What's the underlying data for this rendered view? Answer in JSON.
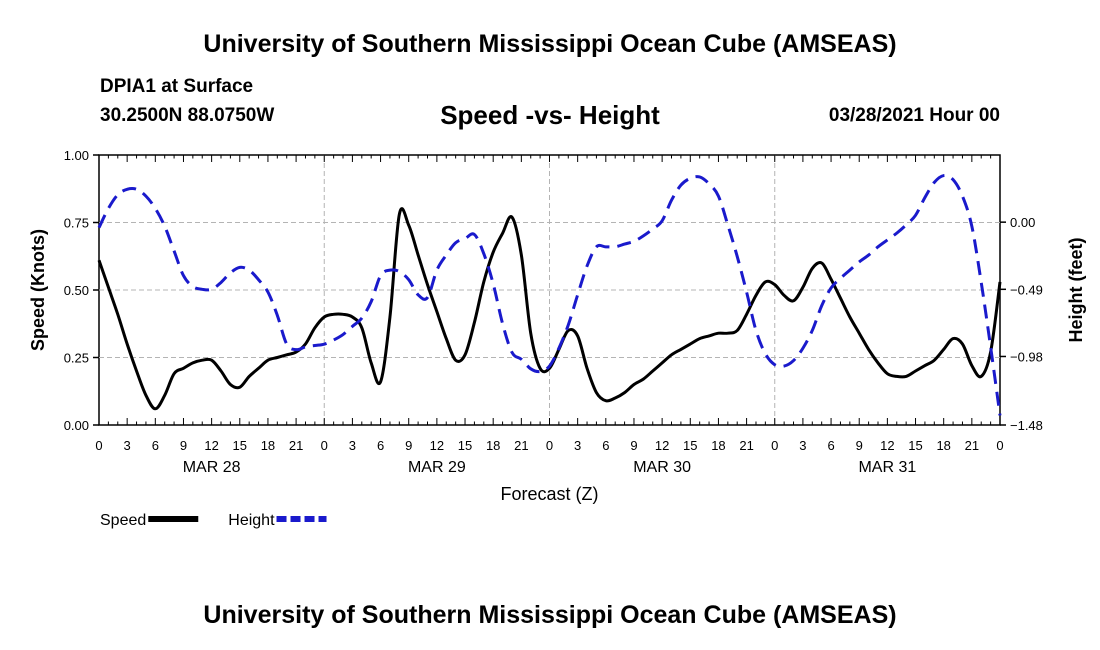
{
  "header": {
    "title_top": "University of Southern Mississippi Ocean Cube (AMSEAS)",
    "title_bottom": "University of Southern Mississippi Ocean Cube (AMSEAS)",
    "station": "DPIA1 at Surface",
    "coords": "30.2500N  88.0750W",
    "datetime": "03/28/2021 Hour 00"
  },
  "chart_data": {
    "type": "line",
    "title": "Speed -vs- Height",
    "xlabel": "Forecast (Z)",
    "ylabel_left": "Speed (Knots)",
    "ylabel_right": "Height (feet)",
    "x_range_hours": [
      0,
      96
    ],
    "ylim_left": [
      0,
      1
    ],
    "ylim_right": [
      -1.48,
      0.49
    ],
    "y_ticks_left": [
      "0.00",
      "0.25",
      "0.50",
      "0.75",
      "1.00"
    ],
    "y_ticks_right": [
      "−1.48",
      "−0.98",
      "−0.49",
      "0.00"
    ],
    "y_ticks_right_values": [
      -1.48,
      -0.98,
      -0.49,
      0.0
    ],
    "x_tick_labels": [
      "0",
      "3",
      "6",
      "9",
      "12",
      "15",
      "18",
      "21",
      "0",
      "3",
      "6",
      "9",
      "12",
      "15",
      "18",
      "21",
      "0",
      "3",
      "6",
      "9",
      "12",
      "15",
      "18",
      "21",
      "0",
      "3",
      "6",
      "9",
      "12",
      "15",
      "18",
      "21",
      "0"
    ],
    "day_labels": [
      {
        "label": "MAR 28",
        "hour": 12
      },
      {
        "label": "MAR 29",
        "hour": 36
      },
      {
        "label": "MAR 30",
        "hour": 60
      },
      {
        "label": "MAR 31",
        "hour": 84
      }
    ],
    "grid": true,
    "legend": [
      {
        "name": "Speed",
        "color": "#000000",
        "style": "solid"
      },
      {
        "name": "Height",
        "color": "#1a1acc",
        "style": "dashed"
      }
    ],
    "series": [
      {
        "name": "Speed",
        "axis": "left",
        "color": "#000000",
        "dash": "solid",
        "x": [
          0,
          1,
          2,
          3,
          4,
          5,
          6,
          7,
          8,
          9,
          10,
          11,
          12,
          13,
          14,
          15,
          16,
          17,
          18,
          19,
          20,
          21,
          22,
          23,
          24,
          25,
          26,
          27,
          28,
          29,
          30,
          31,
          32,
          33,
          34,
          35,
          36,
          37,
          38,
          39,
          40,
          41,
          42,
          43,
          44,
          45,
          46,
          47,
          48,
          49,
          50,
          51,
          52,
          53,
          54,
          55,
          56,
          57,
          58,
          59,
          60,
          61,
          62,
          63,
          64,
          65,
          66,
          67,
          68,
          69,
          70,
          71,
          72,
          73,
          74,
          75,
          76,
          77,
          78,
          79,
          80,
          81,
          82,
          83,
          84,
          85,
          86,
          87,
          88,
          89,
          90,
          91,
          92,
          93,
          94,
          95,
          96
        ],
        "values": [
          0.61,
          0.51,
          0.41,
          0.3,
          0.2,
          0.11,
          0.06,
          0.11,
          0.19,
          0.21,
          0.23,
          0.24,
          0.24,
          0.2,
          0.15,
          0.14,
          0.18,
          0.21,
          0.24,
          0.25,
          0.26,
          0.27,
          0.3,
          0.36,
          0.4,
          0.41,
          0.41,
          0.4,
          0.36,
          0.23,
          0.16,
          0.4,
          0.78,
          0.74,
          0.63,
          0.52,
          0.42,
          0.32,
          0.24,
          0.26,
          0.38,
          0.53,
          0.64,
          0.71,
          0.77,
          0.63,
          0.34,
          0.21,
          0.21,
          0.28,
          0.35,
          0.33,
          0.21,
          0.12,
          0.09,
          0.1,
          0.12,
          0.15,
          0.17,
          0.2,
          0.23,
          0.26,
          0.28,
          0.3,
          0.32,
          0.33,
          0.34,
          0.34,
          0.35,
          0.41,
          0.48,
          0.53,
          0.52,
          0.48,
          0.46,
          0.51,
          0.58,
          0.6,
          0.54,
          0.47,
          0.4,
          0.34,
          0.28,
          0.23,
          0.19,
          0.18,
          0.18,
          0.2,
          0.22,
          0.24,
          0.28,
          0.32,
          0.3,
          0.22,
          0.18,
          0.27,
          0.53
        ]
      },
      {
        "name": "Height",
        "axis": "right",
        "color": "#1a1acc",
        "dash": "dashed",
        "x": [
          0,
          1,
          2,
          3,
          4,
          5,
          6,
          7,
          8,
          9,
          10,
          11,
          12,
          13,
          14,
          15,
          16,
          17,
          18,
          19,
          20,
          21,
          22,
          23,
          24,
          25,
          26,
          27,
          28,
          29,
          30,
          31,
          32,
          33,
          34,
          35,
          36,
          37,
          38,
          39,
          40,
          41,
          42,
          43,
          44,
          45,
          46,
          47,
          48,
          49,
          50,
          51,
          52,
          53,
          54,
          55,
          56,
          57,
          58,
          59,
          60,
          61,
          62,
          63,
          64,
          65,
          66,
          67,
          68,
          69,
          70,
          71,
          72,
          73,
          74,
          75,
          76,
          77,
          78,
          79,
          80,
          81,
          82,
          83,
          84,
          85,
          86,
          87,
          88,
          89,
          90,
          91,
          92,
          93,
          94,
          95,
          96
        ],
        "values": [
          -0.04,
          0.1,
          0.2,
          0.24,
          0.24,
          0.19,
          0.1,
          -0.03,
          -0.21,
          -0.39,
          -0.47,
          -0.49,
          -0.49,
          -0.44,
          -0.37,
          -0.33,
          -0.35,
          -0.42,
          -0.51,
          -0.68,
          -0.89,
          -0.93,
          -0.91,
          -0.9,
          -0.89,
          -0.86,
          -0.82,
          -0.76,
          -0.7,
          -0.58,
          -0.39,
          -0.35,
          -0.36,
          -0.42,
          -0.53,
          -0.55,
          -0.35,
          -0.24,
          -0.15,
          -0.12,
          -0.09,
          -0.23,
          -0.45,
          -0.74,
          -0.95,
          -1.0,
          -1.07,
          -1.09,
          -1.05,
          -0.92,
          -0.75,
          -0.53,
          -0.32,
          -0.18,
          -0.18,
          -0.18,
          -0.16,
          -0.14,
          -0.1,
          -0.05,
          0.01,
          0.16,
          0.27,
          0.32,
          0.33,
          0.28,
          0.19,
          -0.02,
          -0.25,
          -0.51,
          -0.79,
          -0.96,
          -1.04,
          -1.05,
          -1.01,
          -0.92,
          -0.79,
          -0.61,
          -0.48,
          -0.41,
          -0.35,
          -0.29,
          -0.24,
          -0.18,
          -0.13,
          -0.08,
          -0.02,
          0.05,
          0.18,
          0.29,
          0.34,
          0.31,
          0.19,
          -0.03,
          -0.44,
          -0.91,
          -1.41
        ]
      }
    ]
  }
}
